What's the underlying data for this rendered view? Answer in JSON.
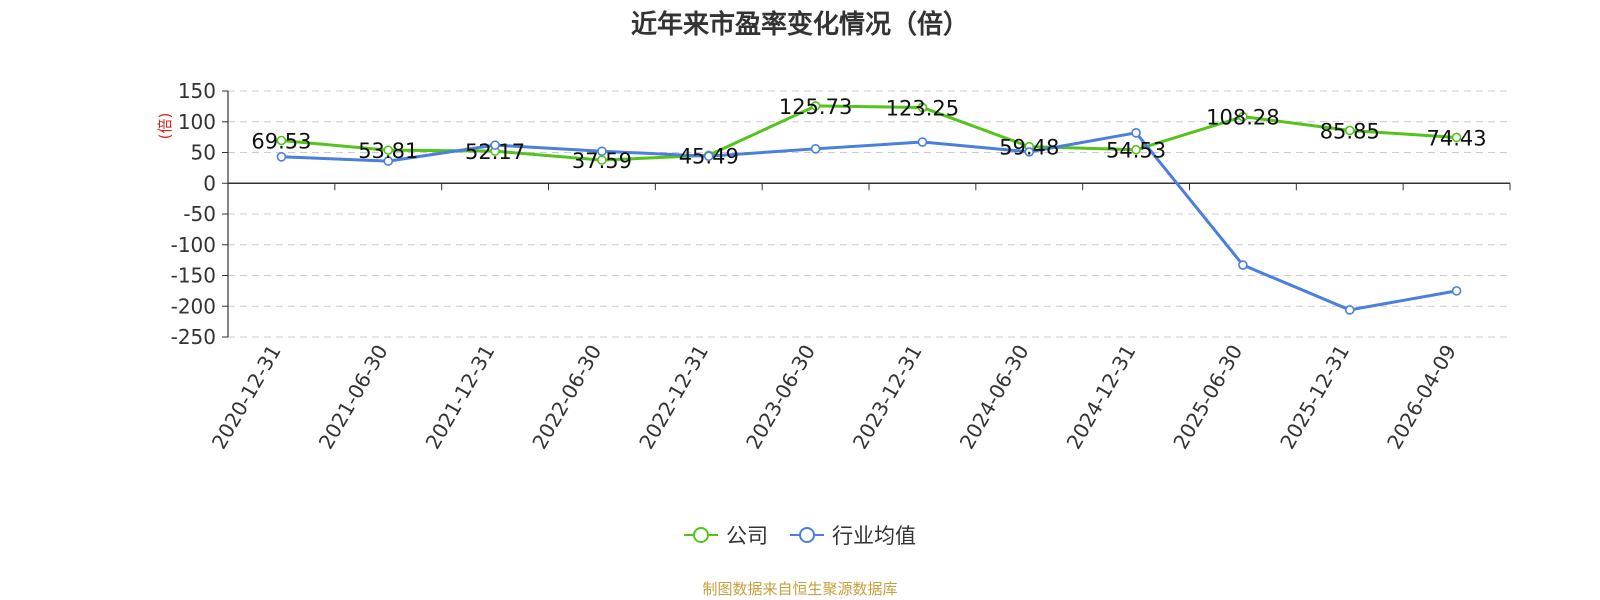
{
  "colors": {
    "company": "#52c41a",
    "industry": "#4a7fdc",
    "ylabel": "#e0201b",
    "source": "#c8a03c",
    "axis": "#333333",
    "grid": "#cccccc"
  },
  "source_note": "制图数据来自恒生聚源数据库",
  "chart_data": {
    "type": "line",
    "title": "近年来市盈率变化情况（倍）",
    "xlabel": "",
    "ylabel": "(倍)",
    "ylim": [
      -250,
      150
    ],
    "yticks": [
      150,
      100,
      50,
      0,
      -50,
      -100,
      -150,
      -200,
      -250
    ],
    "grid": true,
    "legend_position": "bottom-center",
    "categories": [
      "2020-12-31",
      "2021-06-30",
      "2021-12-31",
      "2022-06-30",
      "2022-12-31",
      "2023-06-30",
      "2023-12-31",
      "2024-06-30",
      "2024-12-31",
      "2025-06-30",
      "2025-12-31",
      "2026-04-09"
    ],
    "series": [
      {
        "name": "公司",
        "color_key": "company",
        "values": [
          69.53,
          53.81,
          52.17,
          37.59,
          45.49,
          125.73,
          123.25,
          59.48,
          54.53,
          108.28,
          85.85,
          74.43
        ],
        "labels": [
          "69.53",
          "53.81",
          "52.17",
          "37.59",
          "45.49",
          "125.73",
          "123.25",
          "59.48",
          "54.53",
          "108.28",
          "85.85",
          "74.43"
        ]
      },
      {
        "name": "行业均值",
        "color_key": "industry",
        "values": [
          43,
          36,
          62,
          52,
          44,
          56,
          67,
          51,
          82,
          -133,
          -206,
          -175
        ]
      }
    ]
  }
}
